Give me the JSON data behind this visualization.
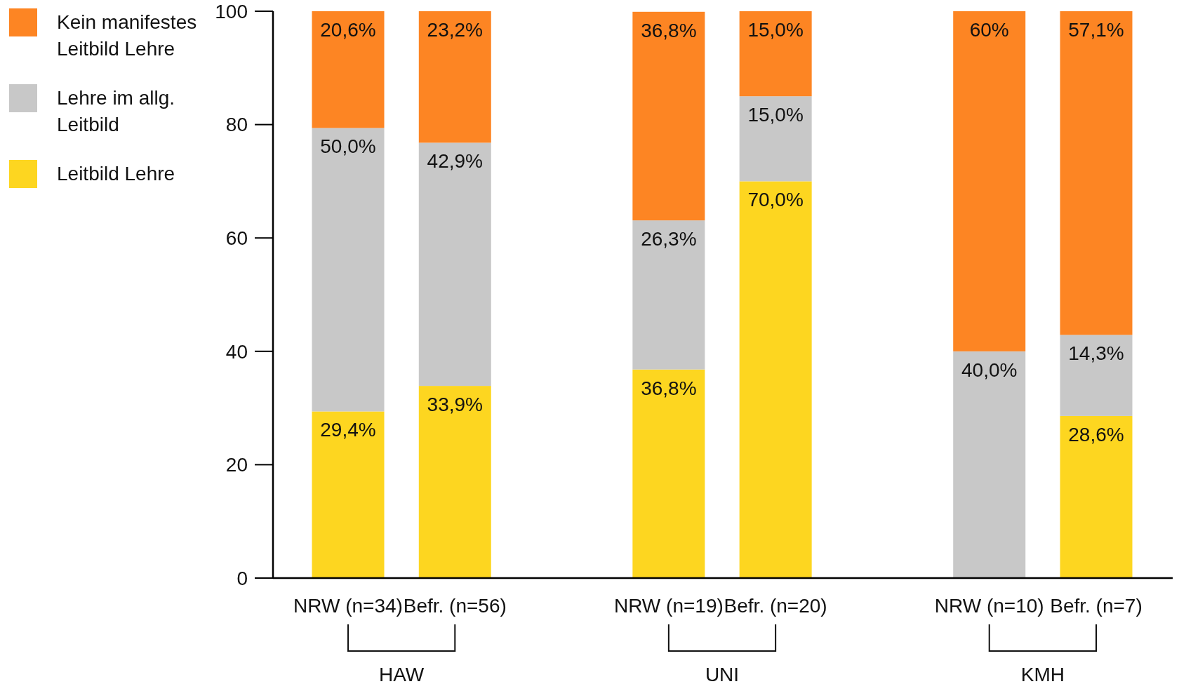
{
  "chart_data": {
    "type": "bar",
    "stacked": true,
    "categories": [
      "NRW (n=34)",
      "Befr. (n=56)",
      null,
      "NRW (n=19)",
      "Befr. (n=20)",
      null,
      "NRW (n=10)",
      "Befr. (n=7)"
    ],
    "series": [
      {
        "name": "Leitbild Lehre",
        "color": "#fdd620",
        "values": [
          29.4,
          33.9,
          null,
          36.8,
          70.0,
          null,
          null,
          28.6
        ],
        "value_labels": [
          "29,4%",
          "33,9%",
          null,
          "36,8%",
          "70,0%",
          null,
          null,
          "28,6%"
        ]
      },
      {
        "name": "Lehre im allg. Leitbild",
        "color": "#c8c8c8",
        "values": [
          50.0,
          42.9,
          null,
          26.3,
          15.0,
          null,
          40.0,
          14.3
        ],
        "value_labels": [
          "50,0%",
          "42,9%",
          null,
          "26,3%",
          "15,0%",
          null,
          "40,0%",
          "14,3%"
        ]
      },
      {
        "name": "Kein manifestes Leitbild Lehre",
        "color": "#fd8523",
        "values": [
          20.6,
          23.2,
          null,
          36.8,
          15.0,
          null,
          60,
          57.1
        ],
        "value_labels": [
          "20,6%",
          "23,2%",
          null,
          "36,8%",
          "15,0%",
          null,
          "60%",
          "57,1%"
        ]
      }
    ],
    "annotations": [
      "HAW",
      "UNI",
      "KMH"
    ],
    "ylim": [
      0,
      100
    ],
    "yticks": [
      0,
      20,
      40,
      60,
      80,
      100
    ],
    "grid": false,
    "legend": "top left"
  }
}
